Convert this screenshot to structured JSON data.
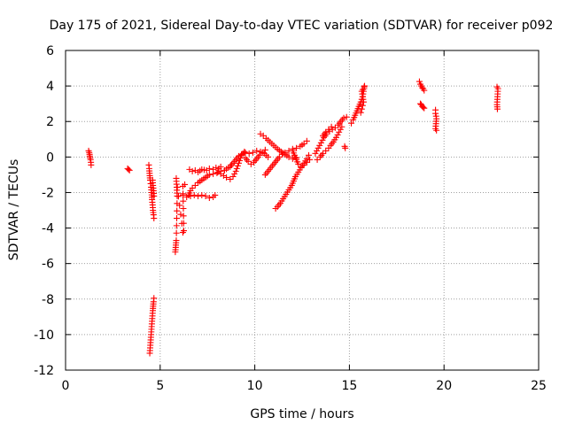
{
  "chart_data": {
    "type": "scatter",
    "title": "Day 175 of 2021, Sidereal Day-to-day VTEC variation (SDTVAR) for receiver p092",
    "xlabel": "GPS time / hours",
    "ylabel": "SDTVAR / TECUs",
    "xlim": [
      0,
      25
    ],
    "ylim": [
      -12,
      6
    ],
    "grid": true,
    "marker": "+",
    "color": "#ff0000",
    "xticks": [
      "0",
      "5",
      "10",
      "15",
      "20",
      "25"
    ],
    "yticks": [
      "6",
      "4",
      "2",
      "0",
      "-2",
      "-4",
      "-6",
      "-8",
      "-10",
      "-12"
    ],
    "series": [
      {
        "name": "SDTVAR",
        "segments": [
          [
            [
              1.22,
              0.35
            ],
            [
              1.25,
              0.25
            ],
            [
              1.27,
              0.15
            ],
            [
              1.28,
              0.05
            ],
            [
              1.3,
              -0.05
            ],
            [
              1.32,
              -0.15
            ],
            [
              1.34,
              -0.3
            ],
            [
              1.35,
              -0.45
            ]
          ],
          [
            [
              3.28,
              -0.65
            ],
            [
              3.33,
              -0.7
            ],
            [
              3.38,
              -0.75
            ]
          ],
          [
            [
              4.4,
              -0.45
            ],
            [
              4.42,
              -0.65
            ],
            [
              4.45,
              -1.05
            ],
            [
              4.47,
              -1.3
            ],
            [
              4.5,
              -1.5
            ],
            [
              4.52,
              -1.7
            ],
            [
              4.55,
              -2.0
            ],
            [
              4.57,
              -2.4
            ],
            [
              4.6,
              -2.7
            ],
            [
              4.62,
              -3.0
            ],
            [
              4.65,
              -3.25
            ],
            [
              4.67,
              -3.45
            ]
          ],
          [
            [
              4.6,
              -1.3
            ],
            [
              4.62,
              -1.6
            ],
            [
              4.65,
              -1.9
            ],
            [
              4.67,
              -2.2
            ]
          ],
          [
            [
              4.45,
              -11.05
            ],
            [
              4.47,
              -10.75
            ],
            [
              4.49,
              -10.45
            ],
            [
              4.51,
              -10.15
            ],
            [
              4.53,
              -9.85
            ],
            [
              4.55,
              -9.55
            ],
            [
              4.57,
              -9.25
            ],
            [
              4.59,
              -8.95
            ],
            [
              4.61,
              -8.65
            ],
            [
              4.63,
              -8.4
            ],
            [
              4.65,
              -8.15
            ],
            [
              4.67,
              -7.95
            ]
          ],
          [
            [
              5.8,
              -5.35
            ],
            [
              5.85,
              -4.7
            ],
            [
              5.9,
              -2.2
            ],
            [
              5.85,
              -1.2
            ],
            [
              6.2,
              -4.25
            ],
            [
              6.25,
              -4.15
            ],
            [
              6.2,
              -1.65
            ],
            [
              6.3,
              -1.55
            ]
          ],
          [
            [
              6.55,
              -0.7
            ],
            [
              6.7,
              -0.8
            ],
            [
              6.85,
              -0.75
            ],
            [
              7.0,
              -0.85
            ],
            [
              7.2,
              -0.7
            ],
            [
              7.45,
              -0.75
            ],
            [
              7.6,
              -0.65
            ],
            [
              7.8,
              -0.7
            ],
            [
              7.95,
              -0.6
            ],
            [
              8.1,
              -0.65
            ],
            [
              8.2,
              -0.55
            ]
          ],
          [
            [
              6.5,
              -2.15
            ],
            [
              6.6,
              -1.9
            ],
            [
              6.7,
              -1.75
            ],
            [
              6.85,
              -1.6
            ],
            [
              7.0,
              -1.45
            ],
            [
              7.2,
              -1.3
            ],
            [
              7.4,
              -1.15
            ],
            [
              7.6,
              -1.0
            ],
            [
              7.8,
              -0.95
            ],
            [
              8.0,
              -0.9
            ],
            [
              8.2,
              -0.8
            ],
            [
              8.4,
              -0.75
            ],
            [
              8.6,
              -0.6
            ],
            [
              8.75,
              -0.45
            ]
          ],
          [
            [
              6.2,
              -2.15
            ],
            [
              6.4,
              -2.25
            ],
            [
              6.6,
              -2.2
            ],
            [
              6.8,
              -2.15
            ],
            [
              7.0,
              -2.2
            ],
            [
              7.2,
              -2.15
            ],
            [
              7.4,
              -2.2
            ],
            [
              7.6,
              -2.3
            ],
            [
              7.8,
              -2.25
            ],
            [
              7.9,
              -2.15
            ]
          ],
          [
            [
              8.05,
              -0.85
            ],
            [
              8.2,
              -0.95
            ],
            [
              8.35,
              -1.05
            ],
            [
              8.5,
              -1.15
            ],
            [
              8.7,
              -1.25
            ],
            [
              8.85,
              -1.1
            ],
            [
              9.0,
              -0.8
            ],
            [
              9.1,
              -0.5
            ],
            [
              9.2,
              -0.2
            ],
            [
              9.3,
              0.1
            ],
            [
              9.45,
              0.3
            ]
          ],
          [
            [
              8.7,
              -0.55
            ],
            [
              8.85,
              -0.35
            ],
            [
              9.0,
              -0.15
            ],
            [
              9.15,
              0.05
            ],
            [
              9.3,
              0.15
            ],
            [
              9.5,
              0.25
            ],
            [
              9.7,
              0.2
            ],
            [
              9.9,
              0.25
            ],
            [
              10.1,
              0.35
            ],
            [
              10.3,
              0.3
            ],
            [
              10.5,
              0.2
            ],
            [
              10.7,
              0.0
            ]
          ],
          [
            [
              9.5,
              -0.05
            ],
            [
              9.65,
              -0.25
            ],
            [
              9.8,
              -0.4
            ],
            [
              9.95,
              -0.3
            ],
            [
              10.1,
              -0.1
            ],
            [
              10.25,
              0.1
            ],
            [
              10.4,
              0.25
            ],
            [
              10.55,
              0.4
            ]
          ],
          [
            [
              10.3,
              1.3
            ],
            [
              10.45,
              1.2
            ],
            [
              10.6,
              1.05
            ],
            [
              10.8,
              0.85
            ],
            [
              11.0,
              0.65
            ],
            [
              11.2,
              0.45
            ],
            [
              11.4,
              0.3
            ],
            [
              11.6,
              0.15
            ],
            [
              11.8,
              0.0
            ],
            [
              12.0,
              -0.1
            ],
            [
              12.2,
              -0.05
            ]
          ],
          [
            [
              10.55,
              -1.0
            ],
            [
              10.7,
              -0.8
            ],
            [
              10.85,
              -0.6
            ],
            [
              11.0,
              -0.4
            ],
            [
              11.15,
              -0.2
            ],
            [
              11.3,
              0.0
            ],
            [
              11.45,
              0.15
            ],
            [
              11.6,
              0.25
            ],
            [
              11.8,
              0.35
            ],
            [
              12.0,
              0.45
            ],
            [
              12.2,
              0.5
            ],
            [
              12.4,
              0.6
            ],
            [
              12.6,
              0.75
            ],
            [
              12.75,
              0.9
            ]
          ],
          [
            [
              11.1,
              -2.9
            ],
            [
              11.2,
              -2.8
            ],
            [
              11.35,
              -2.6
            ],
            [
              11.5,
              -2.35
            ],
            [
              11.65,
              -2.1
            ],
            [
              11.8,
              -1.85
            ],
            [
              11.95,
              -1.6
            ],
            [
              12.05,
              -1.35
            ],
            [
              12.15,
              -1.1
            ],
            [
              12.3,
              -0.85
            ],
            [
              12.45,
              -0.6
            ],
            [
              12.6,
              -0.35
            ],
            [
              12.75,
              -0.1
            ],
            [
              12.85,
              0.1
            ]
          ],
          [
            [
              12.0,
              0.35
            ],
            [
              12.1,
              0.1
            ],
            [
              12.2,
              -0.15
            ],
            [
              12.3,
              -0.4
            ],
            [
              12.45,
              -0.55
            ],
            [
              12.6,
              -0.45
            ],
            [
              12.75,
              -0.3
            ],
            [
              12.9,
              -0.15
            ]
          ],
          [
            [
              13.2,
              0.2
            ],
            [
              13.35,
              0.5
            ],
            [
              13.5,
              0.8
            ],
            [
              13.65,
              1.1
            ],
            [
              13.8,
              1.3
            ],
            [
              13.95,
              1.45
            ],
            [
              14.1,
              1.55
            ],
            [
              14.25,
              1.65
            ],
            [
              14.4,
              1.8
            ],
            [
              14.55,
              2.0
            ],
            [
              14.7,
              2.2
            ],
            [
              14.85,
              2.25
            ]
          ],
          [
            [
              13.3,
              -0.15
            ],
            [
              13.45,
              0.0
            ],
            [
              13.6,
              0.2
            ],
            [
              13.75,
              0.35
            ],
            [
              13.9,
              0.5
            ],
            [
              14.0,
              0.65
            ],
            [
              14.15,
              0.85
            ],
            [
              14.3,
              1.1
            ],
            [
              14.45,
              1.4
            ],
            [
              14.6,
              1.7
            ]
          ],
          [
            [
              13.6,
              1.2
            ],
            [
              13.75,
              1.4
            ],
            [
              13.9,
              1.55
            ],
            [
              14.05,
              1.7
            ]
          ],
          [
            [
              14.75,
              0.6
            ],
            [
              14.78,
              0.5
            ]
          ],
          [
            [
              15.1,
              1.9
            ],
            [
              15.2,
              2.1
            ],
            [
              15.3,
              2.35
            ],
            [
              15.4,
              2.6
            ],
            [
              15.5,
              2.85
            ],
            [
              15.6,
              3.1
            ],
            [
              15.7,
              3.4
            ],
            [
              15.75,
              3.7
            ],
            [
              15.8,
              4.0
            ]
          ],
          [
            [
              15.6,
              2.5
            ],
            [
              15.65,
              2.7
            ],
            [
              15.7,
              2.9
            ],
            [
              15.75,
              3.1
            ],
            [
              15.65,
              3.7
            ],
            [
              15.7,
              3.8
            ],
            [
              15.78,
              3.95
            ]
          ],
          [
            [
              18.7,
              4.25
            ],
            [
              18.75,
              4.1
            ],
            [
              18.8,
              4.0
            ],
            [
              18.85,
              3.9
            ],
            [
              18.9,
              3.85
            ],
            [
              18.95,
              3.75
            ]
          ],
          [
            [
              18.75,
              3.0
            ],
            [
              18.8,
              2.95
            ],
            [
              18.85,
              2.85
            ],
            [
              18.9,
              2.8
            ],
            [
              18.95,
              2.75
            ]
          ],
          [
            [
              19.55,
              2.65
            ],
            [
              19.55,
              2.45
            ],
            [
              19.58,
              2.3
            ],
            [
              19.6,
              2.15
            ],
            [
              19.55,
              1.6
            ],
            [
              19.6,
              1.5
            ]
          ],
          [
            [
              22.8,
              3.95
            ],
            [
              22.85,
              3.85
            ],
            [
              22.8,
              2.95
            ],
            [
              22.82,
              2.7
            ]
          ]
        ]
      }
    ]
  }
}
